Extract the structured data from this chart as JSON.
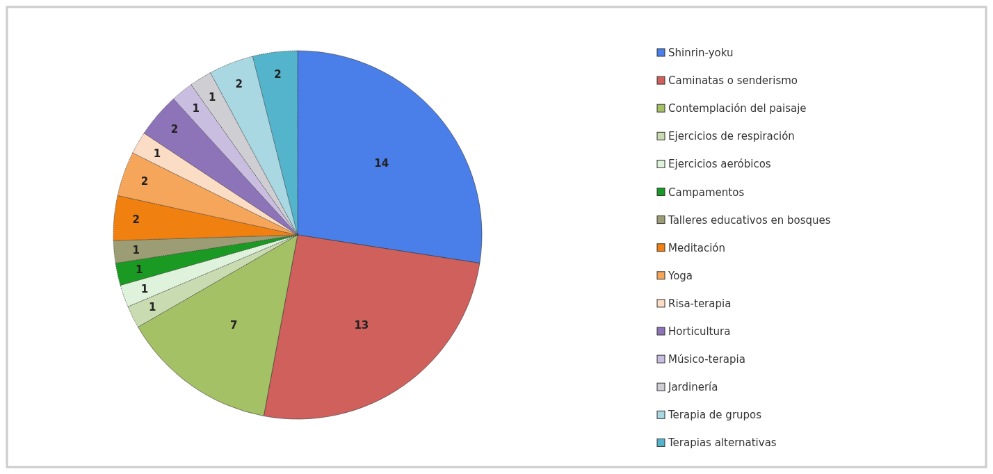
{
  "chart_data": {
    "type": "pie",
    "categories": [
      "Shinrin-yoku",
      "Caminatas o senderismo",
      "Contemplación del paisaje",
      "Ejercicios de respiración",
      "Ejercicios aeróbicos",
      "Campamentos",
      "Talleres educativos en bosques",
      "Meditación",
      "Yoga",
      "Risa-terapia",
      "Horticultura",
      "Músico-terapia",
      "Jardinería",
      "Terapia de grupos",
      "Terapias alternativas"
    ],
    "values": [
      14,
      13,
      7,
      1,
      1,
      1,
      1,
      2,
      2,
      1,
      2,
      1,
      1,
      2,
      2
    ],
    "colors": [
      "#4a7ee8",
      "#d0605c",
      "#a5c165",
      "#c9dbb0",
      "#dff2dc",
      "#1a9a22",
      "#9c9d74",
      "#f0800f",
      "#f5a65a",
      "#fbdcc4",
      "#8d73b7",
      "#c9bee0",
      "#cfcfd3",
      "#a9d8e3",
      "#54b4cc"
    ],
    "data_labels": true,
    "legend": "right"
  }
}
